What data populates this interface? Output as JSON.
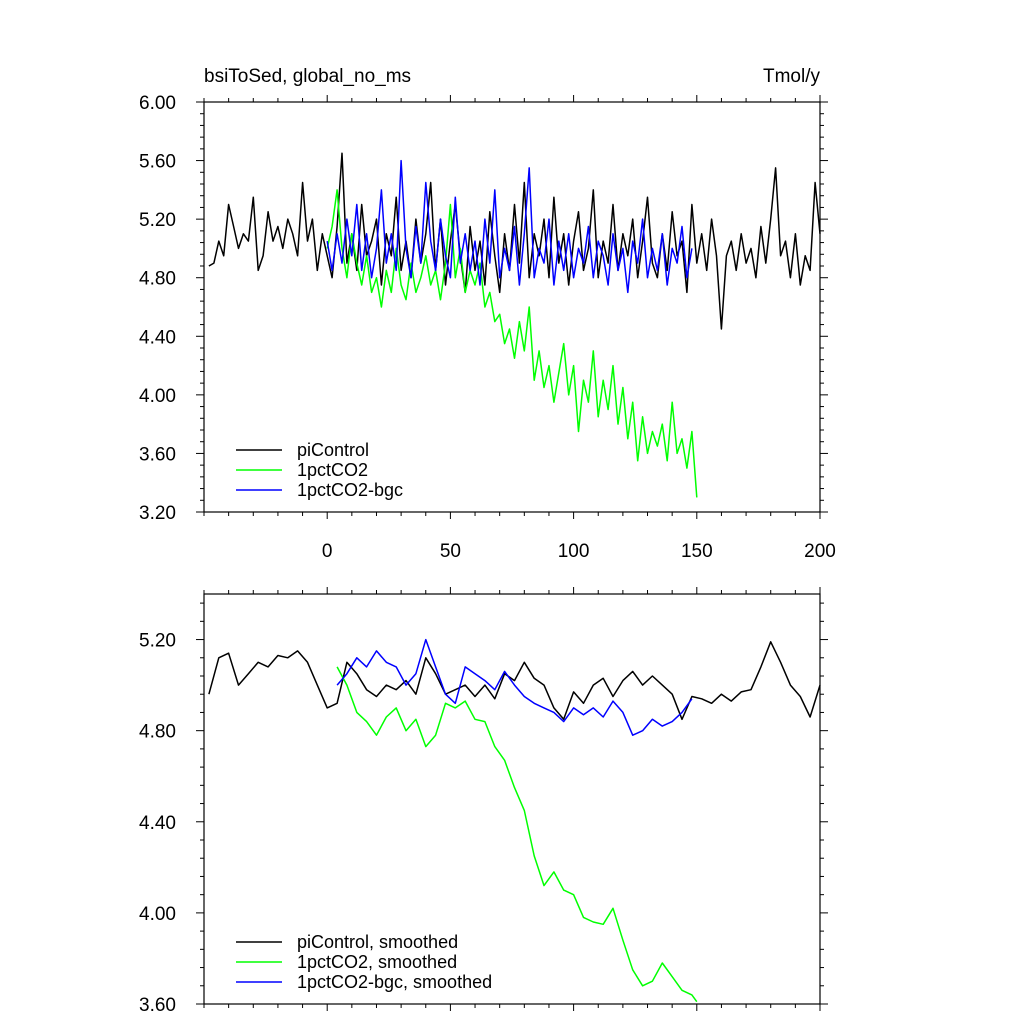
{
  "chart_data": [
    {
      "type": "line",
      "title": "bsiToSed, global_no_ms",
      "units": "Tmol/y",
      "xlim": [
        -50,
        200
      ],
      "ylim": [
        3.2,
        6.0
      ],
      "x_ticks": [
        0,
        50,
        100,
        150,
        200
      ],
      "x_tick_labels": [
        "0",
        "50",
        "100",
        "150",
        "200"
      ],
      "y_ticks": [
        3.2,
        3.6,
        4.0,
        4.4,
        4.8,
        5.2,
        5.6,
        6.0
      ],
      "y_tick_labels": [
        "3.20",
        "3.60",
        "4.00",
        "4.40",
        "4.80",
        "5.20",
        "5.60",
        "6.00"
      ],
      "legend_position": "bottom-left",
      "series": [
        {
          "name": "piControl",
          "color": "#000000",
          "x": [
            -48,
            -46,
            -44,
            -42,
            -40,
            -38,
            -36,
            -34,
            -32,
            -30,
            -28,
            -26,
            -24,
            -22,
            -20,
            -18,
            -16,
            -14,
            -12,
            -10,
            -8,
            -6,
            -4,
            -2,
            0,
            2,
            4,
            6,
            8,
            10,
            12,
            14,
            16,
            18,
            20,
            22,
            24,
            26,
            28,
            30,
            32,
            34,
            36,
            38,
            40,
            42,
            44,
            46,
            48,
            50,
            52,
            54,
            56,
            58,
            60,
            62,
            64,
            66,
            68,
            70,
            72,
            74,
            76,
            78,
            80,
            82,
            84,
            86,
            88,
            90,
            92,
            94,
            96,
            98,
            100,
            102,
            104,
            106,
            108,
            110,
            112,
            114,
            116,
            118,
            120,
            122,
            124,
            126,
            128,
            130,
            132,
            134,
            136,
            138,
            140,
            142,
            144,
            146,
            148,
            150,
            152,
            154,
            156,
            158,
            160,
            162,
            164,
            166,
            168,
            170,
            172,
            174,
            176,
            178,
            180,
            182,
            184,
            186,
            188,
            190,
            192,
            194,
            196,
            198,
            200
          ],
          "values": [
            4.88,
            4.9,
            5.05,
            4.95,
            5.3,
            5.15,
            5.0,
            5.1,
            5.05,
            5.35,
            4.85,
            4.95,
            5.25,
            5.05,
            5.15,
            5.0,
            5.2,
            5.1,
            4.95,
            5.45,
            5.05,
            5.2,
            4.85,
            5.1,
            4.95,
            4.8,
            5.15,
            5.65,
            4.9,
            5.1,
            4.85,
            5.3,
            4.95,
            5.05,
            5.2,
            4.75,
            5.1,
            4.95,
            5.35,
            4.85,
            5.05,
            4.8,
            5.2,
            4.9,
            5.1,
            5.45,
            4.85,
            5.2,
            4.75,
            5.05,
            5.3,
            4.95,
            4.7,
            5.15,
            4.85,
            5.05,
            4.75,
            5.25,
            4.95,
            4.7,
            5.1,
            4.85,
            5.3,
            4.9,
            5.45,
            4.8,
            5.1,
            4.95,
            5.2,
            4.8,
            5.35,
            4.9,
            5.1,
            4.75,
            5.05,
            5.25,
            4.85,
            5.0,
            5.4,
            4.8,
            5.05,
            4.9,
            5.3,
            4.85,
            5.1,
            4.95,
            5.2,
            4.8,
            5.05,
            5.35,
            4.9,
            4.8,
            5.1,
            4.85,
            5.25,
            4.95,
            5.05,
            4.7,
            5.3,
            4.9,
            5.1,
            4.85,
            5.2,
            4.95,
            4.45,
            4.95,
            5.05,
            4.85,
            5.1,
            4.9,
            5.0,
            4.8,
            5.15,
            4.9,
            5.2,
            5.55,
            4.95,
            5.05,
            4.8,
            5.1,
            4.75,
            4.95,
            4.85,
            5.45,
            5.1
          ]
        },
        {
          "name": "1pctCO2",
          "color": "#00ff00",
          "x": [
            0,
            2,
            4,
            6,
            8,
            10,
            12,
            14,
            16,
            18,
            20,
            22,
            24,
            26,
            28,
            30,
            32,
            34,
            36,
            38,
            40,
            42,
            44,
            46,
            48,
            50,
            52,
            54,
            56,
            58,
            60,
            62,
            64,
            66,
            68,
            70,
            72,
            74,
            76,
            78,
            80,
            82,
            84,
            86,
            88,
            90,
            92,
            94,
            96,
            98,
            100,
            102,
            104,
            106,
            108,
            110,
            112,
            114,
            116,
            118,
            120,
            122,
            124,
            126,
            128,
            130,
            132,
            134,
            136,
            138,
            140,
            142,
            144,
            146,
            148,
            150
          ],
          "values": [
            5.0,
            5.15,
            5.4,
            5.0,
            4.8,
            5.1,
            4.9,
            4.75,
            4.95,
            4.7,
            4.8,
            4.6,
            4.85,
            4.7,
            5.0,
            4.75,
            4.65,
            4.9,
            4.7,
            4.8,
            4.95,
            4.75,
            4.85,
            4.65,
            4.9,
            5.3,
            4.8,
            5.0,
            4.7,
            4.85,
            4.75,
            4.9,
            4.6,
            4.7,
            4.5,
            4.55,
            4.35,
            4.45,
            4.25,
            4.5,
            4.3,
            4.6,
            4.1,
            4.3,
            4.05,
            4.2,
            3.95,
            4.15,
            4.35,
            4.0,
            4.2,
            3.75,
            4.1,
            3.95,
            4.3,
            3.85,
            4.1,
            3.9,
            4.2,
            3.8,
            4.05,
            3.7,
            3.95,
            3.55,
            3.85,
            3.6,
            3.75,
            3.65,
            3.8,
            3.55,
            3.95,
            3.6,
            3.7,
            3.5,
            3.75,
            3.3
          ]
        },
        {
          "name": "1pctCO2-bgc",
          "color": "#0000ff",
          "x": [
            0,
            2,
            4,
            6,
            8,
            10,
            12,
            14,
            16,
            18,
            20,
            22,
            24,
            26,
            28,
            30,
            32,
            34,
            36,
            38,
            40,
            42,
            44,
            46,
            48,
            50,
            52,
            54,
            56,
            58,
            60,
            62,
            64,
            66,
            68,
            70,
            72,
            74,
            76,
            78,
            80,
            82,
            84,
            86,
            88,
            90,
            92,
            94,
            96,
            98,
            100,
            102,
            104,
            106,
            108,
            110,
            112,
            114,
            116,
            118,
            120,
            122,
            124,
            126,
            128,
            130,
            132,
            134,
            136,
            138,
            140,
            142,
            144,
            146,
            148
          ],
          "values": [
            5.05,
            4.85,
            5.1,
            4.9,
            5.2,
            4.95,
            5.3,
            4.85,
            5.1,
            4.8,
            5.0,
            5.4,
            4.9,
            5.1,
            4.85,
            5.6,
            5.0,
            4.8,
            5.15,
            4.9,
            5.45,
            5.05,
            4.85,
            5.2,
            4.95,
            4.8,
            5.35,
            4.9,
            5.1,
            4.85,
            5.05,
            4.75,
            5.2,
            4.9,
            5.4,
            4.8,
            5.0,
            4.85,
            5.15,
            4.75,
            5.1,
            5.55,
            4.8,
            5.0,
            4.9,
            5.2,
            4.75,
            5.05,
            4.85,
            5.1,
            4.8,
            5.0,
            4.9,
            5.15,
            4.8,
            5.05,
            4.95,
            4.75,
            5.1,
            4.85,
            5.0,
            4.7,
            5.05,
            4.9,
            5.2,
            4.8,
            5.0,
            4.85,
            5.1,
            4.75,
            5.0,
            4.9,
            5.15,
            4.8,
            5.0
          ]
        }
      ]
    },
    {
      "type": "line",
      "title": "",
      "xlim": [
        -50,
        200
      ],
      "ylim": [
        3.6,
        5.4
      ],
      "x_ticks": [
        0,
        50,
        100,
        150,
        200
      ],
      "y_ticks": [
        3.6,
        4.0,
        4.4,
        4.8,
        5.2
      ],
      "y_tick_labels": [
        "3.60",
        "4.00",
        "4.40",
        "4.80",
        "5.20"
      ],
      "legend_position": "bottom-left",
      "series": [
        {
          "name": "piControl, smoothed",
          "color": "#000000",
          "x": [
            -48,
            -44,
            -40,
            -36,
            -32,
            -28,
            -24,
            -20,
            -16,
            -12,
            -8,
            -4,
            0,
            4,
            8,
            12,
            16,
            20,
            24,
            28,
            32,
            36,
            40,
            44,
            48,
            52,
            56,
            60,
            64,
            68,
            72,
            76,
            80,
            84,
            88,
            92,
            96,
            100,
            104,
            108,
            112,
            116,
            120,
            124,
            128,
            132,
            136,
            140,
            144,
            148,
            152,
            156,
            160,
            164,
            168,
            172,
            176,
            180,
            184,
            188,
            192,
            196,
            200
          ],
          "values": [
            4.96,
            5.12,
            5.14,
            5.0,
            5.05,
            5.1,
            5.08,
            5.13,
            5.12,
            5.15,
            5.1,
            5.0,
            4.9,
            4.92,
            5.1,
            5.05,
            4.98,
            4.95,
            5.0,
            4.98,
            5.02,
            4.96,
            5.12,
            5.05,
            4.96,
            4.98,
            5.0,
            4.95,
            5.0,
            4.94,
            5.05,
            5.02,
            5.1,
            5.03,
            5.0,
            4.9,
            4.85,
            4.97,
            4.92,
            5.0,
            5.03,
            4.95,
            5.02,
            5.06,
            5.0,
            5.04,
            5.0,
            4.96,
            4.85,
            4.95,
            4.94,
            4.92,
            4.96,
            4.93,
            4.97,
            4.98,
            5.08,
            5.19,
            5.1,
            5.0,
            4.95,
            4.86,
            5.0
          ]
        },
        {
          "name": "1pctCO2, smoothed",
          "color": "#00ff00",
          "x": [
            4,
            8,
            12,
            16,
            20,
            24,
            28,
            32,
            36,
            40,
            44,
            48,
            52,
            56,
            60,
            64,
            68,
            72,
            76,
            80,
            84,
            88,
            92,
            96,
            100,
            104,
            108,
            112,
            116,
            120,
            124,
            128,
            132,
            136,
            140,
            144,
            148,
            150
          ],
          "values": [
            5.08,
            5.0,
            4.88,
            4.84,
            4.78,
            4.86,
            4.9,
            4.8,
            4.85,
            4.73,
            4.78,
            4.92,
            4.9,
            4.93,
            4.85,
            4.84,
            4.73,
            4.67,
            4.55,
            4.45,
            4.25,
            4.12,
            4.18,
            4.1,
            4.08,
            3.98,
            3.96,
            3.95,
            4.02,
            3.88,
            3.75,
            3.68,
            3.7,
            3.78,
            3.72,
            3.66,
            3.64,
            3.61
          ]
        },
        {
          "name": "1pctCO2-bgc, smoothed",
          "color": "#0000ff",
          "x": [
            4,
            8,
            12,
            16,
            20,
            24,
            28,
            32,
            36,
            40,
            44,
            48,
            52,
            56,
            60,
            64,
            68,
            72,
            76,
            80,
            84,
            88,
            92,
            96,
            100,
            104,
            108,
            112,
            116,
            120,
            124,
            128,
            132,
            136,
            140,
            144,
            148
          ],
          "values": [
            5.0,
            5.05,
            5.12,
            5.08,
            5.15,
            5.1,
            5.08,
            5.0,
            5.05,
            5.2,
            5.08,
            4.96,
            4.92,
            5.08,
            5.05,
            5.02,
            4.98,
            5.06,
            5.0,
            4.95,
            4.92,
            4.9,
            4.88,
            4.84,
            4.9,
            4.87,
            4.9,
            4.86,
            4.93,
            4.88,
            4.78,
            4.8,
            4.85,
            4.82,
            4.84,
            4.88,
            4.94
          ]
        }
      ]
    }
  ]
}
